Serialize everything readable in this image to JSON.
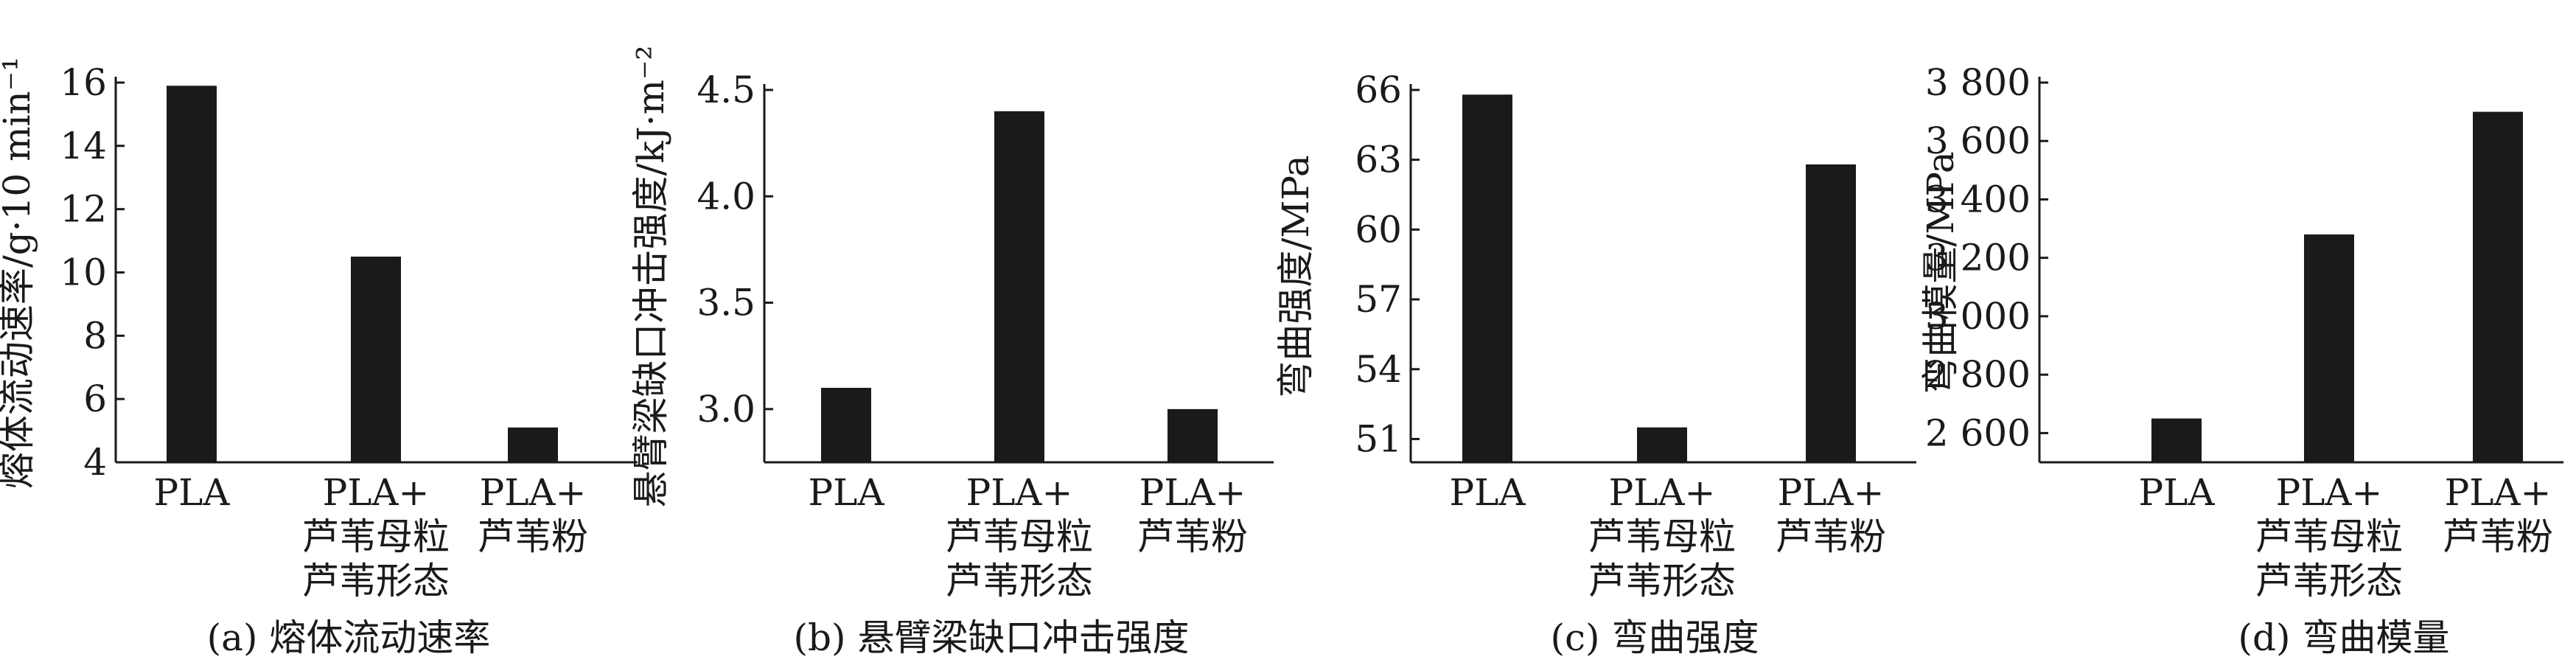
{
  "chart_data": [
    {
      "type": "bar",
      "caption": "(a) 熔体流动速率",
      "ylabel": "熔体流动速率/g·10 min⁻¹",
      "categories": [
        {
          "lines": [
            "PLA"
          ]
        },
        {
          "lines": [
            "PLA+",
            "芦苇母粒",
            "芦苇形态"
          ]
        },
        {
          "lines": [
            "PLA+",
            "芦苇粉"
          ]
        }
      ],
      "values": [
        15.9,
        10.5,
        5.1
      ],
      "ylim": [
        4,
        16
      ],
      "yticks": [
        4,
        6,
        8,
        10,
        12,
        14,
        16
      ],
      "ytick_labels": [
        "4",
        "6",
        "8",
        "10",
        "12",
        "14",
        "16"
      ],
      "bar_color": "#1a1a1a"
    },
    {
      "type": "bar",
      "caption": "(b) 悬臂梁缺口冲击强度",
      "ylabel": "悬臂梁缺口冲击强度/kJ·m⁻²",
      "categories": [
        {
          "lines": [
            "PLA"
          ]
        },
        {
          "lines": [
            "PLA+",
            "芦苇母粒",
            "芦苇形态"
          ]
        },
        {
          "lines": [
            "PLA+",
            "芦苇粉"
          ]
        }
      ],
      "values": [
        3.1,
        4.4,
        3.0
      ],
      "ylim": [
        2.75,
        4.5
      ],
      "yticks": [
        3.0,
        3.5,
        4.0,
        4.5
      ],
      "ytick_labels": [
        "3.0",
        "3.5",
        "4.0",
        "4.5"
      ],
      "bar_color": "#1a1a1a"
    },
    {
      "type": "bar",
      "caption": "(c) 弯曲强度",
      "ylabel": "弯曲强度/MPa",
      "categories": [
        {
          "lines": [
            "PLA"
          ]
        },
        {
          "lines": [
            "PLA+",
            "芦苇母粒",
            "芦苇形态"
          ]
        },
        {
          "lines": [
            "PLA+",
            "芦苇粉"
          ]
        }
      ],
      "values": [
        65.8,
        51.5,
        62.8
      ],
      "ylim": [
        50,
        66
      ],
      "yticks": [
        51,
        54,
        57,
        60,
        63,
        66
      ],
      "ytick_labels": [
        "51",
        "54",
        "57",
        "60",
        "63",
        "66"
      ],
      "bar_color": "#1a1a1a"
    },
    {
      "type": "bar",
      "caption": "(d) 弯曲模量",
      "ylabel": "弯曲模量/MPa",
      "categories": [
        {
          "lines": [
            "PLA"
          ]
        },
        {
          "lines": [
            "PLA+",
            "芦苇母粒",
            "芦苇形态"
          ]
        },
        {
          "lines": [
            "PLA+",
            "芦苇粉"
          ]
        }
      ],
      "values": [
        2650,
        3280,
        3700
      ],
      "ylim": [
        2500,
        3800
      ],
      "yticks": [
        2600,
        2800,
        3000,
        3200,
        3400,
        3600,
        3800
      ],
      "ytick_labels": [
        "2 600",
        "2 800",
        "3 000",
        "3 200",
        "3 400",
        "3 600",
        "3 800"
      ],
      "bar_color": "#1a1a1a"
    }
  ]
}
